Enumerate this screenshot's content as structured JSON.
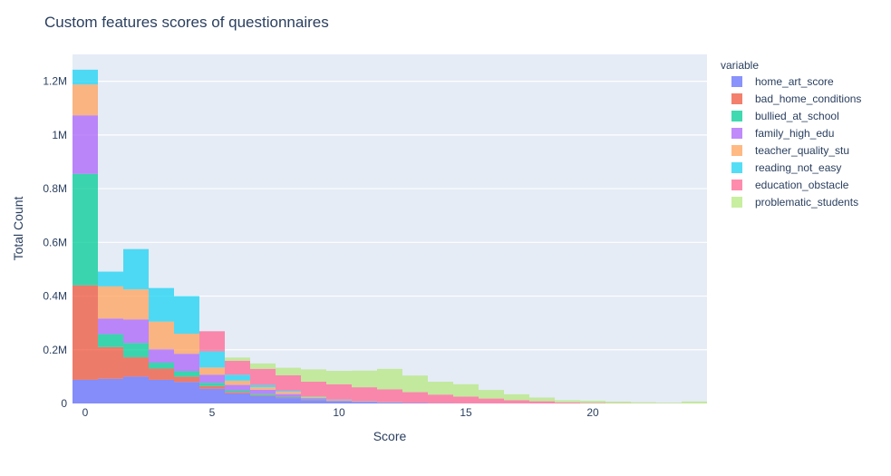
{
  "chart_data": {
    "type": "bar",
    "barmode": "stack",
    "title": "Custom features scores of questionnaires",
    "xlabel": "Score",
    "ylabel": "Total Count",
    "legend_title": "variable",
    "legend_position": "right",
    "xlim": [
      -0.5,
      24.5
    ],
    "ylim": [
      0,
      1300000
    ],
    "x_ticks": [
      0,
      5,
      10,
      15,
      20
    ],
    "y_ticks": [
      {
        "value": 0,
        "label": "0"
      },
      {
        "value": 200000,
        "label": "0.2M"
      },
      {
        "value": 400000,
        "label": "0.4M"
      },
      {
        "value": 600000,
        "label": "0.6M"
      },
      {
        "value": 800000,
        "label": "0.8M"
      },
      {
        "value": 1000000,
        "label": "1M"
      },
      {
        "value": 1200000,
        "label": "1.2M"
      }
    ],
    "x": [
      0,
      1,
      2,
      3,
      4,
      5,
      6,
      7,
      8,
      9,
      10,
      11,
      12,
      13,
      14,
      15,
      16,
      17,
      18,
      19,
      20,
      21,
      22,
      23,
      24
    ],
    "series": [
      {
        "name": "home_art_score",
        "color": "#636efa",
        "values": [
          88000,
          92000,
          100000,
          88000,
          80000,
          55000,
          38000,
          28000,
          20000,
          12000,
          8000,
          5000,
          3000,
          2000,
          1000,
          500,
          300,
          200,
          100,
          0,
          0,
          0,
          0,
          0,
          0
        ]
      },
      {
        "name": "bad_home_conditions",
        "color": "#ef553b",
        "values": [
          352000,
          118000,
          72000,
          42000,
          20000,
          10000,
          5000,
          3000,
          2000,
          1000,
          500,
          300,
          200,
          100,
          0,
          0,
          0,
          0,
          0,
          0,
          0,
          0,
          0,
          0,
          0
        ]
      },
      {
        "name": "bullied_at_school",
        "color": "#00cc96",
        "values": [
          415000,
          48000,
          53000,
          22000,
          20000,
          12000,
          6000,
          5000,
          3000,
          2000,
          1000,
          500,
          300,
          0,
          0,
          0,
          0,
          0,
          0,
          0,
          0,
          0,
          0,
          0,
          0
        ]
      },
      {
        "name": "family_high_edu",
        "color": "#ab63fa",
        "values": [
          218000,
          58000,
          88000,
          50000,
          65000,
          30000,
          20000,
          15000,
          10000,
          5000,
          2000,
          1000,
          500,
          0,
          0,
          0,
          0,
          0,
          0,
          0,
          0,
          0,
          0,
          0,
          0
        ]
      },
      {
        "name": "teacher_quality_stu",
        "color": "#ffa15a",
        "values": [
          115000,
          120000,
          112000,
          103000,
          75000,
          27000,
          16000,
          10000,
          8000,
          5000,
          2000,
          1000,
          500,
          0,
          0,
          0,
          0,
          0,
          0,
          0,
          0,
          0,
          0,
          0,
          0
        ]
      },
      {
        "name": "reading_not_easy",
        "color": "#19d3f3",
        "values": [
          55000,
          55000,
          150000,
          125000,
          140000,
          60000,
          22000,
          8000,
          4000,
          2000,
          1000,
          500,
          300,
          0,
          0,
          0,
          0,
          0,
          0,
          0,
          0,
          0,
          0,
          0,
          0
        ]
      },
      {
        "name": "education_obstacle",
        "color": "#ff6692",
        "values": [
          0,
          0,
          0,
          0,
          0,
          75000,
          52000,
          60000,
          58000,
          54000,
          57000,
          52000,
          48000,
          40000,
          32000,
          25000,
          18000,
          12000,
          8000,
          4000,
          2000,
          1000,
          500,
          500,
          300
        ]
      },
      {
        "name": "problematic_students",
        "color": "#b6e880",
        "values": [
          0,
          0,
          0,
          0,
          0,
          0,
          12000,
          20000,
          28000,
          46000,
          50000,
          62000,
          76000,
          62000,
          48000,
          46000,
          32000,
          22000,
          14000,
          8000,
          8000,
          6000,
          4000,
          2500,
          7000
        ]
      }
    ]
  }
}
